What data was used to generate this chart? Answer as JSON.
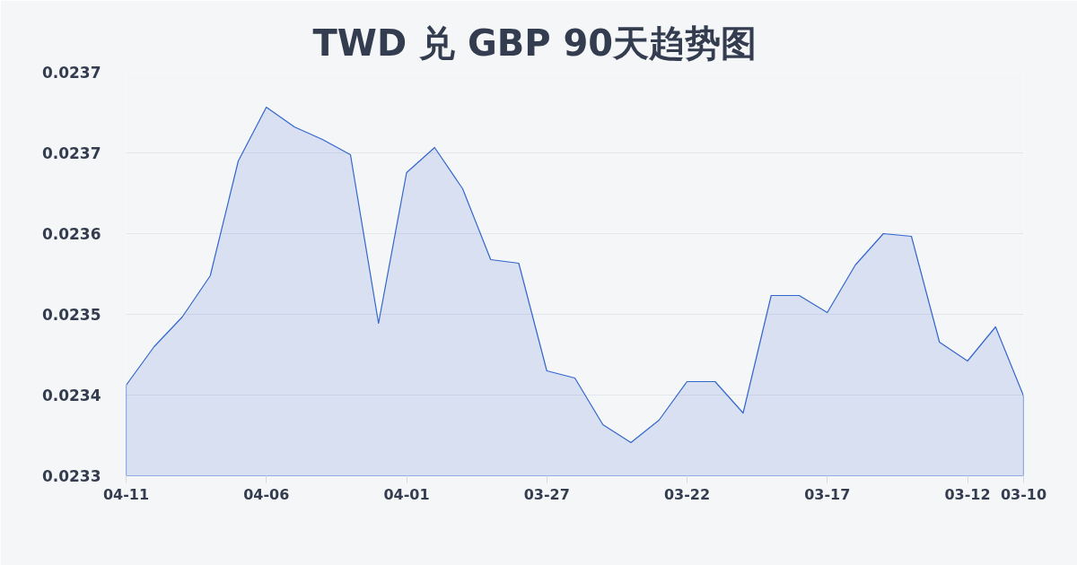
{
  "chart_data": {
    "type": "area",
    "title": "TWD 兑 GBP 90天趋势图",
    "categories": [
      "04-11",
      null,
      null,
      null,
      null,
      "04-06",
      null,
      null,
      null,
      null,
      "04-01",
      null,
      null,
      null,
      null,
      "03-27",
      null,
      null,
      null,
      null,
      "03-22",
      null,
      null,
      null,
      null,
      "03-17",
      null,
      null,
      null,
      null,
      "03-12",
      null,
      "03-10"
    ],
    "series": [
      {
        "color": "#3366cc",
        "values": [
          0.023401,
          0.023444,
          0.023477,
          0.023523,
          0.023651,
          0.023711,
          0.023689,
          0.023675,
          0.023658,
          0.02347,
          0.023638,
          0.023666,
          0.02362,
          0.023541,
          0.023537,
          0.023417,
          0.023409,
          0.023357,
          0.023337,
          0.023362,
          0.023405,
          0.023405,
          0.02337,
          0.023501,
          0.023501,
          0.023482,
          0.023535,
          0.02357,
          0.023567,
          0.023449,
          0.023428,
          0.023466,
          0.023389
        ]
      }
    ],
    "ylim": [
      0.0233,
      0.02375
    ],
    "yticks": [
      {
        "value": 0.0233,
        "label": "0.0233"
      },
      {
        "value": 0.02339,
        "label": "0.0234"
      },
      {
        "value": 0.02348,
        "label": "0.0235"
      },
      {
        "value": 0.02357,
        "label": "0.0236"
      },
      {
        "value": 0.02366,
        "label": "0.0237"
      },
      {
        "value": 0.02375,
        "label": "0.0237"
      }
    ],
    "grid": "y"
  }
}
